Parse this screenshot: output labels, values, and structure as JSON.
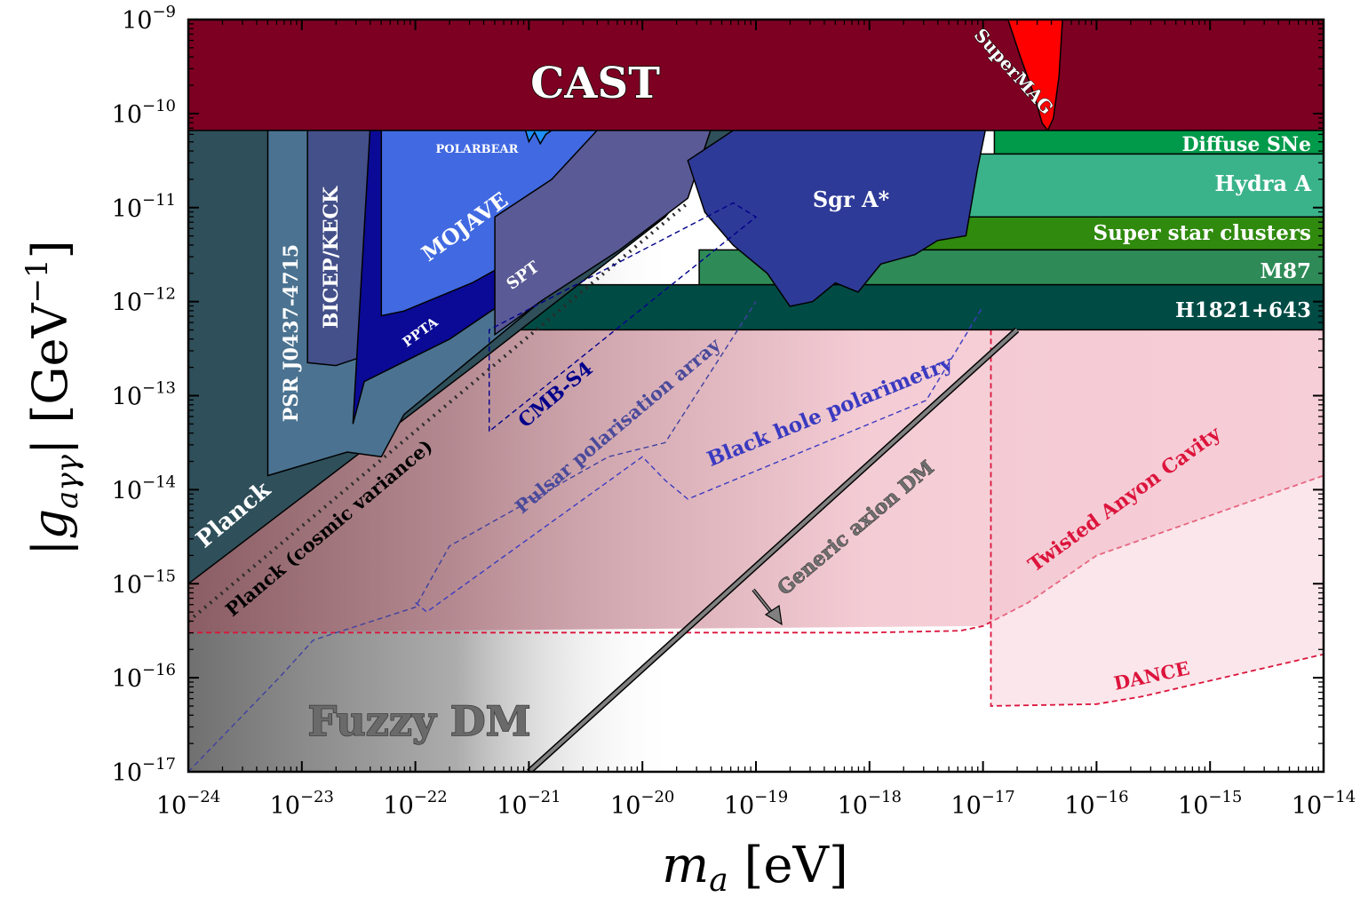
{
  "chart_data": {
    "type": "area",
    "xlabel": "m_a [eV]",
    "ylabel": "|g_aγγ| [GeV^-1]",
    "xscale": "log",
    "yscale": "log",
    "xlim": [
      1e-24,
      1e-14
    ],
    "ylim": [
      1e-17,
      1e-09
    ],
    "x_ticks": [
      "10^-24",
      "10^-23",
      "10^-22",
      "10^-21",
      "10^-20",
      "10^-19",
      "10^-18",
      "10^-17",
      "10^-16",
      "10^-15",
      "10^-14"
    ],
    "y_ticks": [
      "10^-17",
      "10^-16",
      "10^-15",
      "10^-14",
      "10^-13",
      "10^-12",
      "10^-11",
      "10^-10",
      "10^-9"
    ],
    "x_tick_labels": [
      "10−24",
      "10−23",
      "10−22",
      "10−21",
      "10−20",
      "10−19",
      "10−18",
      "10−17",
      "10−16",
      "10−15",
      "10−14"
    ],
    "y_tick_labels": [
      "10−17",
      "10−16",
      "10−15",
      "10−14",
      "10−13",
      "10−12",
      "10−11",
      "10−10",
      "10−9"
    ],
    "grid": false,
    "regions": [
      {
        "name": "CAST",
        "color": "#7d0022",
        "x_range": [
          1e-24,
          1e-14
        ],
        "y_range": [
          6.6e-11,
          1e-09
        ]
      },
      {
        "name": "SuperMAG",
        "color": "#ff0000",
        "x_range": [
          1.6e-17,
          5e-17
        ],
        "y_min": 6.6e-11
      },
      {
        "name": "Diffuse SNe",
        "color": "#009a4a",
        "x_range": [
          9.5e-18,
          1e-14
        ],
        "y_range": [
          3.7e-11,
          6.6e-11
        ]
      },
      {
        "name": "Hydra A",
        "color": "#3ab38a",
        "x_range": [
          9.5e-18,
          1e-14
        ],
        "y_range": [
          8e-12,
          3.7e-11
        ]
      },
      {
        "name": "Super star clusters",
        "color": "#2f8a0d",
        "x_range": [
          1e-19,
          1e-14
        ],
        "y_range": [
          3.5e-12,
          8e-12
        ]
      },
      {
        "name": "M87",
        "color": "#2e8b57",
        "x_range": [
          1e-19,
          1e-14
        ],
        "y_range": [
          1.5e-12,
          3.5e-12
        ]
      },
      {
        "name": "H1821+643",
        "color": "#004c45",
        "x_range": [
          1e-19,
          1e-14
        ],
        "y_range": [
          5e-13,
          1.5e-12
        ]
      },
      {
        "name": "Sgr A*",
        "color": "#2e3a97"
      },
      {
        "name": "Planck",
        "color": "#2f4f5a"
      },
      {
        "name": "PSR J0437-4715",
        "color": "#4b7391"
      },
      {
        "name": "BICEP/KECK",
        "color": "#44508a"
      },
      {
        "name": "MOJAVE",
        "color": "#4169e1"
      },
      {
        "name": "POLARBEAR",
        "color": "#1e90ff"
      },
      {
        "name": "PPTA",
        "color": "#0a0a96"
      },
      {
        "name": "SPT",
        "color": "#5a5a96"
      }
    ],
    "projections": [
      {
        "name": "Planck (cosmic variance)",
        "style": "dotted",
        "color": "#2a2a2a"
      },
      {
        "name": "CMB-S4",
        "style": "dashed",
        "color": "#00008b"
      },
      {
        "name": "Pulsar polarisation array",
        "style": "dashed",
        "color": "#4040a0"
      },
      {
        "name": "Black hole polarimetry",
        "style": "dashed",
        "color": "#3a3ac0"
      },
      {
        "name": "Twisted Anyon Cavity",
        "style": "dashed",
        "color": "#dc143c",
        "baseline_y": 3e-16
      },
      {
        "name": "DANCE",
        "style": "dashed",
        "color": "#dc143c"
      }
    ],
    "annotations": [
      "Generic axion DM",
      "Fuzzy DM"
    ]
  },
  "colors": {
    "cast": "#7d0022",
    "supermag": "#ff0000",
    "diffuse_sne": "#009a4a",
    "hydra": "#3ab38a",
    "ssc": "#2f8a0d",
    "m87": "#2e8b57",
    "h1821": "#004c45",
    "sgra": "#2e3a97",
    "planck": "#2f4f5a",
    "psr": "#4b7391",
    "bicep": "#44508a",
    "mojave": "#4169e1",
    "polarbear": "#1e90ff",
    "ppta": "#0a0a96",
    "spt": "#5a5a96",
    "twisted": "#dc143c"
  }
}
